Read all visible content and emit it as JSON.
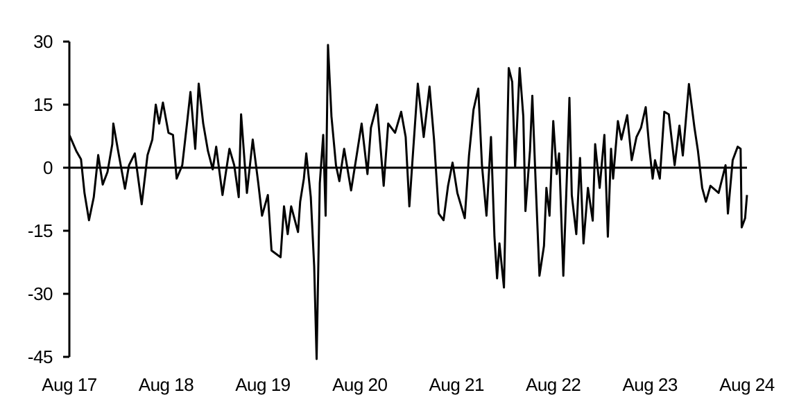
{
  "chart_data": {
    "type": "line",
    "title": "",
    "xlabel": "",
    "ylabel": "",
    "ylim": [
      -45,
      30
    ],
    "yticks": [
      30,
      15,
      0,
      -15,
      -30,
      -45
    ],
    "ytick_labels": [
      "30",
      "15",
      "0",
      "-15",
      "-30",
      "-45"
    ],
    "xlim": [
      "2017-08-01",
      "2024-08-01"
    ],
    "xticks": [
      "2017-08-01",
      "2018-08-01",
      "2019-08-01",
      "2020-08-01",
      "2021-08-01",
      "2022-08-01",
      "2023-08-01",
      "2024-08-01"
    ],
    "xtick_labels": [
      "Aug 17",
      "Aug 18",
      "Aug 19",
      "Aug 20",
      "Aug 21",
      "Aug 22",
      "Aug 23",
      "Aug 24"
    ],
    "grid": false,
    "zero_line": true,
    "line_color": "#000000",
    "series": [
      {
        "points": [
          [
            "2017-08-01",
            7.8
          ],
          [
            "2017-08-27",
            4
          ],
          [
            "2017-09-14",
            2
          ],
          [
            "2017-09-27",
            -6
          ],
          [
            "2017-10-14",
            -12.5
          ],
          [
            "2017-11-01",
            -7
          ],
          [
            "2017-11-18",
            3
          ],
          [
            "2017-12-05",
            -4
          ],
          [
            "2017-12-23",
            -1
          ],
          [
            "2018-01-10",
            5.6
          ],
          [
            "2018-01-14",
            10.5
          ],
          [
            "2018-02-01",
            4
          ],
          [
            "2018-02-27",
            -5
          ],
          [
            "2018-03-14",
            0.6
          ],
          [
            "2018-04-05",
            3.4
          ],
          [
            "2018-05-01",
            -8.7
          ],
          [
            "2018-05-23",
            3
          ],
          [
            "2018-06-10",
            6.7
          ],
          [
            "2018-06-23",
            15
          ],
          [
            "2018-07-06",
            10.5
          ],
          [
            "2018-07-20",
            15.5
          ],
          [
            "2018-08-10",
            8.3
          ],
          [
            "2018-08-27",
            7.8
          ],
          [
            "2018-09-10",
            -2.6
          ],
          [
            "2018-10-01",
            0.6
          ],
          [
            "2018-10-19",
            10.5
          ],
          [
            "2018-11-01",
            18
          ],
          [
            "2018-11-19",
            4.5
          ],
          [
            "2018-12-02",
            20
          ],
          [
            "2018-12-19",
            10.5
          ],
          [
            "2019-01-06",
            4
          ],
          [
            "2019-01-24",
            -0.4
          ],
          [
            "2019-02-06",
            5
          ],
          [
            "2019-03-02",
            -6.5
          ],
          [
            "2019-03-28",
            4.5
          ],
          [
            "2019-04-15",
            0.6
          ],
          [
            "2019-05-02",
            -7
          ],
          [
            "2019-05-11",
            12.7
          ],
          [
            "2019-06-02",
            -6
          ],
          [
            "2019-06-24",
            6.7
          ],
          [
            "2019-07-15",
            -3.7
          ],
          [
            "2019-07-29",
            -11.4
          ],
          [
            "2019-08-20",
            -6.5
          ],
          [
            "2019-09-03",
            -19.7
          ],
          [
            "2019-10-07",
            -21.3
          ],
          [
            "2019-10-20",
            -9.2
          ],
          [
            "2019-11-03",
            -15.8
          ],
          [
            "2019-11-16",
            -9.2
          ],
          [
            "2019-12-12",
            -15.3
          ],
          [
            "2019-12-20",
            -8.1
          ],
          [
            "2020-01-03",
            -2.6
          ],
          [
            "2020-01-12",
            3.4
          ],
          [
            "2020-01-29",
            -7
          ],
          [
            "2020-02-11",
            -23.5
          ],
          [
            "2020-02-20",
            -45.5
          ],
          [
            "2020-03-03",
            -3.7
          ],
          [
            "2020-03-16",
            7.8
          ],
          [
            "2020-03-25",
            -11.4
          ],
          [
            "2020-04-03",
            29.2
          ],
          [
            "2020-04-16",
            12.2
          ],
          [
            "2020-05-03",
            0.6
          ],
          [
            "2020-05-16",
            -3.2
          ],
          [
            "2020-06-03",
            4.5
          ],
          [
            "2020-06-29",
            -5.4
          ],
          [
            "2020-07-20",
            2.9
          ],
          [
            "2020-08-08",
            10.5
          ],
          [
            "2020-08-30",
            -1.5
          ],
          [
            "2020-09-12",
            9.5
          ],
          [
            "2020-10-05",
            15
          ],
          [
            "2020-10-30",
            -4.3
          ],
          [
            "2020-11-16",
            10.5
          ],
          [
            "2020-12-12",
            8.3
          ],
          [
            "2021-01-04",
            13.3
          ],
          [
            "2021-01-21",
            7.3
          ],
          [
            "2021-02-04",
            -9.2
          ],
          [
            "2021-02-17",
            2.9
          ],
          [
            "2021-03-08",
            20
          ],
          [
            "2021-03-30",
            7.3
          ],
          [
            "2021-04-21",
            19.3
          ],
          [
            "2021-05-08",
            6.7
          ],
          [
            "2021-05-26",
            -10.9
          ],
          [
            "2021-06-13",
            -12.5
          ],
          [
            "2021-06-30",
            -4.3
          ],
          [
            "2021-07-17",
            1.2
          ],
          [
            "2021-08-04",
            -6
          ],
          [
            "2021-09-01",
            -12
          ],
          [
            "2021-09-17",
            2.9
          ],
          [
            "2021-10-04",
            13.8
          ],
          [
            "2021-10-22",
            18.8
          ],
          [
            "2021-11-05",
            0.6
          ],
          [
            "2021-11-22",
            -11.4
          ],
          [
            "2021-12-09",
            7.3
          ],
          [
            "2021-12-22",
            -16.4
          ],
          [
            "2022-01-01",
            -26.3
          ],
          [
            "2022-01-10",
            -18
          ],
          [
            "2022-01-27",
            -28.5
          ],
          [
            "2022-02-14",
            23.7
          ],
          [
            "2022-02-27",
            20.4
          ],
          [
            "2022-03-10",
            0
          ],
          [
            "2022-03-27",
            23.7
          ],
          [
            "2022-04-10",
            12.2
          ],
          [
            "2022-04-18",
            -10.3
          ],
          [
            "2022-05-05",
            4
          ],
          [
            "2022-05-14",
            17.1
          ],
          [
            "2022-05-27",
            -4.3
          ],
          [
            "2022-06-10",
            -25.7
          ],
          [
            "2022-06-27",
            -18.6
          ],
          [
            "2022-07-06",
            -4.8
          ],
          [
            "2022-07-18",
            -11.4
          ],
          [
            "2022-08-01",
            11.1
          ],
          [
            "2022-08-14",
            -1.5
          ],
          [
            "2022-08-23",
            3.4
          ],
          [
            "2022-09-08",
            -25.7
          ],
          [
            "2022-09-23",
            0.6
          ],
          [
            "2022-10-01",
            16.6
          ],
          [
            "2022-10-10",
            -6.5
          ],
          [
            "2022-10-27",
            -15.8
          ],
          [
            "2022-11-10",
            2.3
          ],
          [
            "2022-11-23",
            -18
          ],
          [
            "2022-12-10",
            -4.8
          ],
          [
            "2022-12-28",
            -12.6
          ],
          [
            "2023-01-06",
            5.6
          ],
          [
            "2023-01-23",
            -4.8
          ],
          [
            "2023-02-10",
            7.8
          ],
          [
            "2023-02-23",
            -16.4
          ],
          [
            "2023-03-07",
            4.5
          ],
          [
            "2023-03-15",
            -2.6
          ],
          [
            "2023-04-02",
            11.1
          ],
          [
            "2023-04-15",
            6.7
          ],
          [
            "2023-05-07",
            12.5
          ],
          [
            "2023-05-24",
            1.8
          ],
          [
            "2023-06-11",
            7.3
          ],
          [
            "2023-06-28",
            9.5
          ],
          [
            "2023-07-16",
            14.4
          ],
          [
            "2023-07-29",
            5
          ],
          [
            "2023-08-11",
            -2.6
          ],
          [
            "2023-08-20",
            1.8
          ],
          [
            "2023-09-07",
            -2.6
          ],
          [
            "2023-09-24",
            13.3
          ],
          [
            "2023-10-11",
            12.7
          ],
          [
            "2023-11-02",
            0.6
          ],
          [
            "2023-11-20",
            10
          ],
          [
            "2023-12-03",
            2.9
          ],
          [
            "2023-12-26",
            19.9
          ],
          [
            "2024-01-16",
            9.5
          ],
          [
            "2024-01-29",
            4
          ],
          [
            "2024-02-14",
            -4.8
          ],
          [
            "2024-02-28",
            -8.1
          ],
          [
            "2024-03-16",
            -4.3
          ],
          [
            "2024-04-16",
            -6
          ],
          [
            "2024-05-12",
            0.6
          ],
          [
            "2024-05-21",
            -10.9
          ],
          [
            "2024-06-08",
            1.8
          ],
          [
            "2024-06-27",
            5
          ],
          [
            "2024-07-08",
            4.5
          ],
          [
            "2024-07-12",
            -14.2
          ],
          [
            "2024-07-25",
            -12
          ],
          [
            "2024-08-01",
            -6.5
          ]
        ]
      }
    ]
  }
}
